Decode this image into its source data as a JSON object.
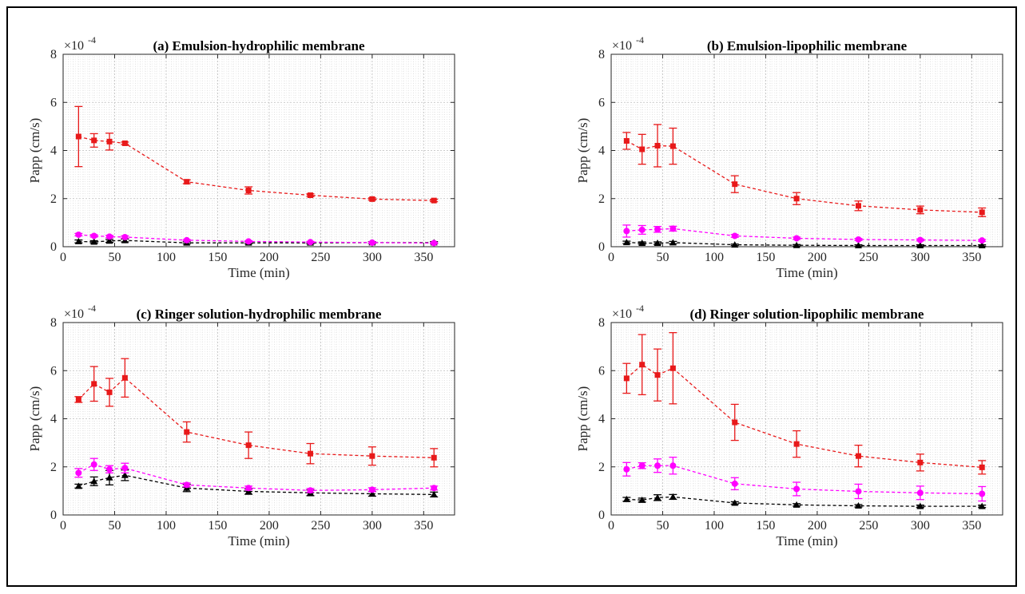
{
  "chart_data": [
    {
      "type": "line",
      "title": "(a) Emulsion-hydrophilic membrane",
      "xlabel": "Time (min)",
      "ylabel": "Papp (cm/s)",
      "multiplier": "×10",
      "exponent": "-4",
      "xlim": [
        0,
        380
      ],
      "ylim": [
        0,
        8
      ],
      "xticks": [
        0,
        50,
        100,
        150,
        200,
        250,
        300,
        350
      ],
      "yticks": [
        0,
        2,
        4,
        6,
        8
      ],
      "x": [
        15,
        30,
        45,
        60,
        120,
        180,
        240,
        300,
        360
      ],
      "series": [
        {
          "name": "red-square",
          "color": "#e8191a",
          "marker": "square",
          "values": [
            4.58,
            4.42,
            4.37,
            4.3,
            2.7,
            2.34,
            2.14,
            1.98,
            1.92
          ],
          "errors": [
            1.25,
            0.28,
            0.35,
            0.05,
            0.08,
            0.15,
            0.06,
            0.05,
            0.05
          ]
        },
        {
          "name": "magenta-circle",
          "color": "#ff00ff",
          "marker": "circle",
          "values": [
            0.5,
            0.45,
            0.42,
            0.4,
            0.27,
            0.22,
            0.19,
            0.17,
            0.15
          ],
          "errors": [
            0.05,
            0.05,
            0.05,
            0.05,
            0.03,
            0.03,
            0.03,
            0.03,
            0.03
          ]
        },
        {
          "name": "black-triangle",
          "color": "#000000",
          "marker": "triangle",
          "values": [
            0.22,
            0.2,
            0.24,
            0.26,
            0.16,
            0.16,
            0.16,
            0.17,
            0.17
          ],
          "errors": [
            0.06,
            0.05,
            0.06,
            0.06,
            0.04,
            0.04,
            0.04,
            0.04,
            0.04
          ]
        }
      ]
    },
    {
      "type": "line",
      "title": "(b) Emulsion-lipophilic membrane",
      "xlabel": "Time (min)",
      "ylabel": "Papp (cm/s)",
      "multiplier": "×10",
      "exponent": "-4",
      "xlim": [
        0,
        380
      ],
      "ylim": [
        0,
        8
      ],
      "xticks": [
        0,
        50,
        100,
        150,
        200,
        250,
        300,
        350
      ],
      "yticks": [
        0,
        2,
        4,
        6,
        8
      ],
      "x": [
        15,
        30,
        45,
        60,
        120,
        180,
        240,
        300,
        360
      ],
      "series": [
        {
          "name": "red-square",
          "color": "#e8191a",
          "marker": "square",
          "values": [
            4.4,
            4.05,
            4.2,
            4.18,
            2.6,
            2.0,
            1.7,
            1.53,
            1.43
          ],
          "errors": [
            0.35,
            0.62,
            0.88,
            0.75,
            0.35,
            0.25,
            0.2,
            0.16,
            0.18
          ]
        },
        {
          "name": "magenta-circle",
          "color": "#ff00ff",
          "marker": "circle",
          "values": [
            0.65,
            0.7,
            0.72,
            0.75,
            0.45,
            0.35,
            0.3,
            0.28,
            0.26
          ],
          "errors": [
            0.25,
            0.18,
            0.12,
            0.1,
            0.06,
            0.05,
            0.04,
            0.04,
            0.04
          ]
        },
        {
          "name": "black-triangle",
          "color": "#000000",
          "marker": "triangle",
          "values": [
            0.18,
            0.15,
            0.15,
            0.17,
            0.08,
            0.06,
            0.05,
            0.05,
            0.05
          ],
          "errors": [
            0.05,
            0.05,
            0.05,
            0.05,
            0.03,
            0.03,
            0.03,
            0.03,
            0.03
          ]
        }
      ]
    },
    {
      "type": "line",
      "title": "(c) Ringer solution-hydrophilic membrane",
      "xlabel": "Time (min)",
      "ylabel": "Papp (cm/s)",
      "multiplier": "×10",
      "exponent": "-4",
      "xlim": [
        0,
        380
      ],
      "ylim": [
        0,
        8
      ],
      "xticks": [
        0,
        50,
        100,
        150,
        200,
        250,
        300,
        350
      ],
      "yticks": [
        0,
        2,
        4,
        6,
        8
      ],
      "x": [
        15,
        30,
        45,
        60,
        120,
        180,
        240,
        300,
        360
      ],
      "series": [
        {
          "name": "red-square",
          "color": "#e8191a",
          "marker": "square",
          "values": [
            4.8,
            5.45,
            5.1,
            5.7,
            3.45,
            2.9,
            2.55,
            2.45,
            2.38
          ],
          "errors": [
            0.12,
            0.72,
            0.58,
            0.8,
            0.42,
            0.55,
            0.42,
            0.38,
            0.38
          ]
        },
        {
          "name": "magenta-circle",
          "color": "#ff00ff",
          "marker": "circle",
          "values": [
            1.75,
            2.1,
            1.9,
            1.95,
            1.25,
            1.12,
            1.02,
            1.05,
            1.12
          ],
          "errors": [
            0.18,
            0.25,
            0.15,
            0.2,
            0.08,
            0.08,
            0.08,
            0.08,
            0.08
          ]
        },
        {
          "name": "black-triangle",
          "color": "#000000",
          "marker": "triangle",
          "values": [
            1.2,
            1.4,
            1.55,
            1.65,
            1.12,
            0.98,
            0.92,
            0.88,
            0.85
          ],
          "errors": [
            0.08,
            0.18,
            0.3,
            0.22,
            0.15,
            0.12,
            0.12,
            0.1,
            0.1
          ]
        }
      ]
    },
    {
      "type": "line",
      "title": "(d) Ringer solution-lipophilic membrane",
      "xlabel": "Time (min)",
      "ylabel": "Papp (cm/s)",
      "multiplier": "×10",
      "exponent": "-4",
      "xlim": [
        0,
        380
      ],
      "ylim": [
        0,
        8
      ],
      "xticks": [
        0,
        50,
        100,
        150,
        200,
        250,
        300,
        350
      ],
      "yticks": [
        0,
        2,
        4,
        6,
        8
      ],
      "x": [
        15,
        30,
        45,
        60,
        120,
        180,
        240,
        300,
        360
      ],
      "series": [
        {
          "name": "red-square",
          "color": "#e8191a",
          "marker": "square",
          "values": [
            5.68,
            6.25,
            5.82,
            6.1,
            3.85,
            2.95,
            2.45,
            2.18,
            1.98
          ],
          "errors": [
            0.62,
            1.25,
            1.08,
            1.48,
            0.75,
            0.55,
            0.45,
            0.35,
            0.28
          ]
        },
        {
          "name": "magenta-circle",
          "color": "#ff00ff",
          "marker": "circle",
          "values": [
            1.9,
            2.05,
            2.05,
            2.05,
            1.3,
            1.08,
            0.98,
            0.92,
            0.88
          ],
          "errors": [
            0.28,
            0.12,
            0.28,
            0.35,
            0.25,
            0.28,
            0.3,
            0.28,
            0.3
          ]
        },
        {
          "name": "black-triangle",
          "color": "#000000",
          "marker": "triangle",
          "values": [
            0.65,
            0.62,
            0.72,
            0.75,
            0.5,
            0.42,
            0.38,
            0.36,
            0.36
          ],
          "errors": [
            0.08,
            0.08,
            0.12,
            0.1,
            0.05,
            0.05,
            0.05,
            0.05,
            0.05
          ]
        }
      ]
    }
  ]
}
